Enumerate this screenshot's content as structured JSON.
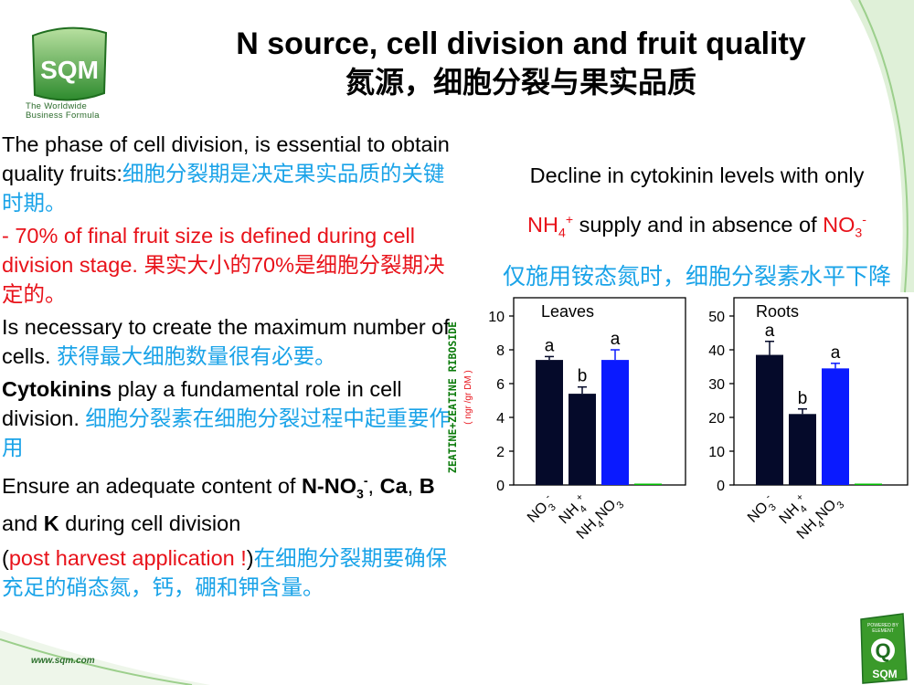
{
  "header": {
    "logo_text": "SQM",
    "logo_caption_1": "The Worldwide",
    "logo_caption_2": "Business Formula",
    "title_en": "N source, cell division and fruit quality",
    "title_cn": "氮源，细胞分裂与果实品质"
  },
  "left": {
    "p1_en": "The phase of cell division, is essential to obtain quality fruits:",
    "p1_cn": "细胞分裂期是决定果实品质的关键时期。",
    "p2_en": "- 70% of final fruit size is defined during cell division stage.",
    "p2_cn": " 果实大小的70%是细胞分裂期决定的。",
    "p3_en": "Is necessary to create the maximum number of cells.",
    "p3_cn": " 获得最大细胞数量很有必要。",
    "p4_bold": "Cytokinins",
    "p4_en": " play a fundamental role in cell division.",
    "p4_cn": " 细胞分裂素在细胞分裂过程中起重要作用",
    "p5_a": "Ensure an adequate content of ",
    "p5_n": "N-NO",
    "p5_sub": "3",
    "p5_sup": "-",
    "p5_comma": ", ",
    "p5_ca": "Ca",
    "p5_sep1": ", ",
    "p5_b": "B",
    "p5_and": " and ",
    "p5_k": "K",
    "p5_end": " during cell division",
    "p6_open": "(",
    "p6_red": "post harvest application !",
    "p6_close": ")",
    "p6_cn": "在细胞分裂期要确保充足的硝态氮，钙，硼和钾含量。"
  },
  "right": {
    "line1": "Decline in cytokinin levels with only",
    "nh4": "NH",
    "nh4_sub": "4",
    "nh4_sup": "+",
    "line2_mid": " supply and in absence of ",
    "no3": "NO",
    "no3_sub": "3",
    "no3_sup": "-",
    "line3_cn": "仅施用铵态氮时，细胞分裂素水平下降"
  },
  "colors": {
    "dark_bar": "#050a2a",
    "blue_bar": "#0a1aff",
    "green_bar": "#00c000",
    "cyan_text": "#1aa3e8",
    "red_text": "#e8121a",
    "brand_green": "#2e8b2e"
  },
  "chart_data": [
    {
      "type": "bar",
      "title": "Leaves",
      "ylabel": "ZEATINE+ZEATINE RIBOSIDE",
      "ylabel_unit": "( ngr /gr DM )",
      "categories": [
        "NO3-",
        "NH4+",
        "NH4NO3",
        ""
      ],
      "values": [
        7.4,
        5.4,
        7.4,
        0.05
      ],
      "errors": [
        0.2,
        0.4,
        0.6,
        0
      ],
      "letters": [
        "a",
        "b",
        "a",
        ""
      ],
      "bar_colors": [
        "#050a2a",
        "#050a2a",
        "#0a1aff",
        "#00c000"
      ],
      "ylim": [
        0,
        10
      ],
      "yticks": [
        0,
        2,
        4,
        6,
        8,
        10
      ],
      "ytick_labels": [
        "0",
        "2",
        "4",
        "6",
        "8",
        "10"
      ]
    },
    {
      "type": "bar",
      "title": "Roots",
      "categories": [
        "NO3-",
        "NH4+",
        "NH4NO3",
        ""
      ],
      "values": [
        38.5,
        21,
        34.5,
        0.2
      ],
      "errors": [
        4,
        1.5,
        1.5,
        0
      ],
      "letters": [
        "a",
        "b",
        "a",
        ""
      ],
      "bar_colors": [
        "#050a2a",
        "#050a2a",
        "#0a1aff",
        "#00c000"
      ],
      "ylim": [
        0,
        50
      ],
      "yticks": [
        0,
        10,
        20,
        30,
        40,
        50
      ],
      "ytick_labels": [
        "0",
        "10",
        "20",
        "30",
        "40",
        "50"
      ]
    }
  ],
  "footer": {
    "website": "www.sqm.com",
    "badge_top": "POWERED BY",
    "badge_mid": "ELEMENT",
    "badge_letter": "Q",
    "badge_bottom": "SQM"
  }
}
